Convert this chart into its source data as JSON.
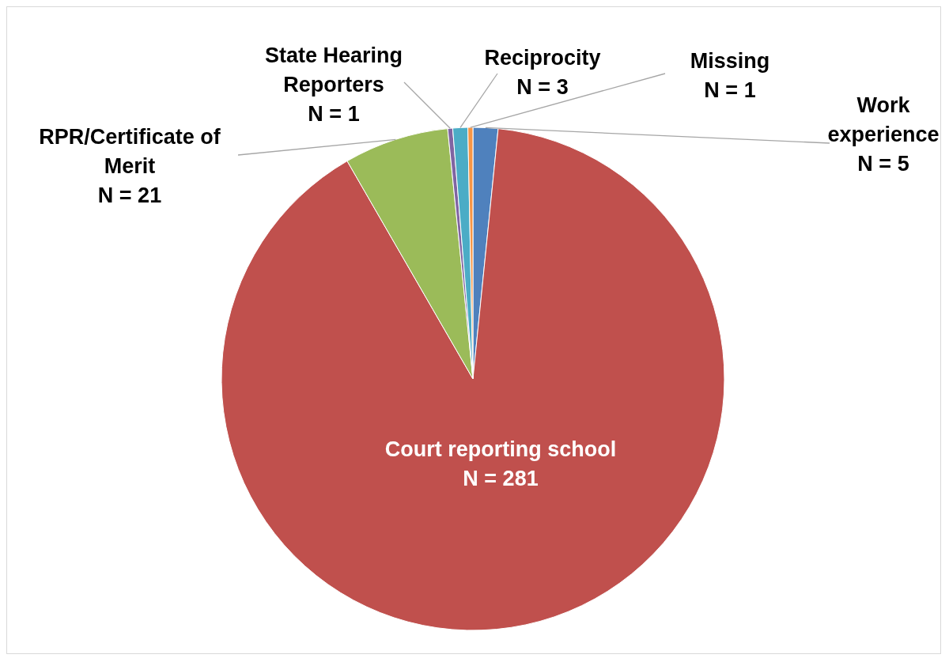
{
  "chart_data": {
    "type": "pie",
    "categories": [
      "Work experience",
      "Court reporting school",
      "RPR/Certificate of Merit",
      "State Hearing Reporters",
      "Reciprocity",
      "Missing"
    ],
    "values": [
      5,
      281,
      21,
      1,
      3,
      1
    ],
    "value_labels": [
      "N = 5",
      "N = 281",
      "N = 21",
      "N = 1",
      "N = 3",
      "N = 1"
    ],
    "colors": [
      "#4f81bd",
      "#c0504d",
      "#9bbb59",
      "#8064a2",
      "#4bacc6",
      "#f79646"
    ]
  }
}
